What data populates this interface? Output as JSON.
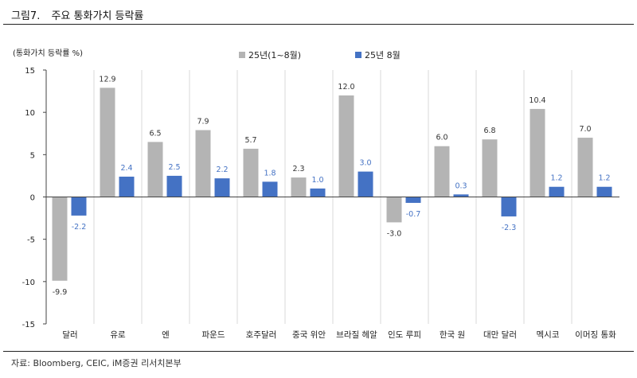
{
  "figure": {
    "number": "그림7.",
    "title": "주요 통화가치 등락률",
    "source": "자료: Bloomberg, CEIC, iM증권 리서치본부"
  },
  "colors": {
    "series1": "#b4b4b4",
    "series2": "#4472c4",
    "grid": "#d9d9d9",
    "axis": "#444444",
    "label2": "#4472c4"
  },
  "chart_data": {
    "type": "bar",
    "ylabel": "(통화가치 등락률 %)",
    "ylim": [
      -15,
      15
    ],
    "yticks": [
      15,
      10,
      5,
      0,
      -5,
      -10,
      -15
    ],
    "legend_position": "top-center",
    "grid": "vertical-separators",
    "categories": [
      "달러",
      "유로",
      "엔",
      "파운드",
      "호주달러",
      "중국 위안",
      "브라질 헤알",
      "인도 루피",
      "한국 원",
      "대만 달러",
      "멕시코",
      "이머징 통화"
    ],
    "series": [
      {
        "name": "25년(1~8월)",
        "values": [
          -9.9,
          12.9,
          6.5,
          7.9,
          5.7,
          2.3,
          12.0,
          -3.0,
          6.0,
          6.8,
          10.4,
          7.0
        ]
      },
      {
        "name": "25년 8월",
        "values": [
          -2.2,
          2.4,
          2.5,
          2.2,
          1.8,
          1.0,
          3.0,
          -0.7,
          0.3,
          -2.3,
          1.2,
          1.2
        ]
      }
    ]
  }
}
